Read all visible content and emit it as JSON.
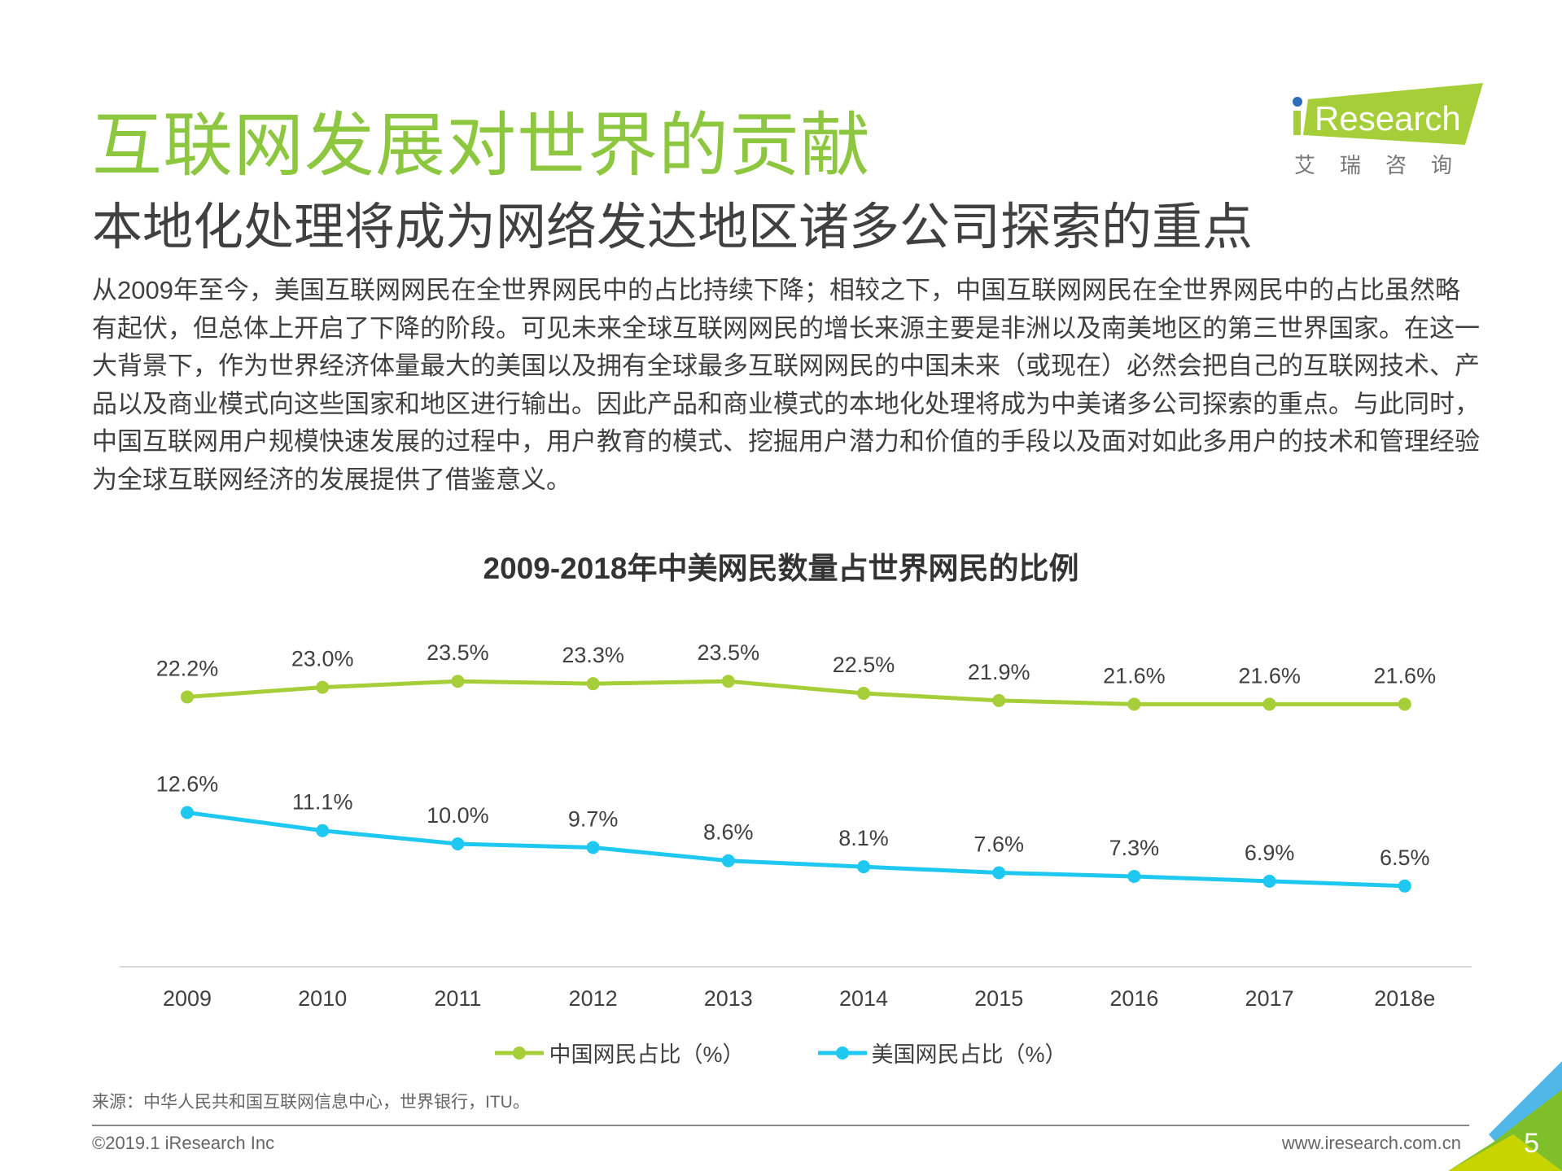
{
  "header": {
    "title": "互联网发展对世界的贡献",
    "subtitle": "本地化处理将成为网络发达地区诸多公司探索的重点",
    "logo": {
      "brand": "iResearch",
      "cn": "艾 瑞 咨 询",
      "color": "#a6ce39",
      "dot_color": "#2a6ebb"
    }
  },
  "body_text": "从2009年至今，美国互联网网民在全世界网民中的占比持续下降；相较之下，中国互联网网民在全世界网民中的占比虽然略有起伏，但总体上开启了下降的阶段。可见未来全球互联网网民的增长来源主要是非洲以及南美地区的第三世界国家。在这一大背景下，作为世界经济体量最大的美国以及拥有全球最多互联网网民的中国未来（或现在）必然会把自己的互联网技术、产品以及商业模式向这些国家和地区进行输出。因此产品和商业模式的本地化处理将成为中美诸多公司探索的重点。与此同时，中国互联网用户规模快速发展的过程中，用户教育的模式、挖掘用户潜力和价值的手段以及面对如此多用户的技术和管理经验为全球互联网经济的发展提供了借鉴意义。",
  "chart_data": {
    "type": "line",
    "title": "2009-2018年中美网民数量占世界网民的比例",
    "categories": [
      "2009",
      "2010",
      "2011",
      "2012",
      "2013",
      "2014",
      "2015",
      "2016",
      "2017",
      "2018e"
    ],
    "series": [
      {
        "name": "中国网民占比（%）",
        "color": "#a6ce39",
        "values": [
          22.2,
          23.0,
          23.5,
          23.3,
          23.5,
          22.5,
          21.9,
          21.6,
          21.6,
          21.6
        ],
        "labels": [
          "22.2%",
          "23.0%",
          "23.5%",
          "23.3%",
          "23.5%",
          "22.5%",
          "21.9%",
          "21.6%",
          "21.6%",
          "21.6%"
        ]
      },
      {
        "name": "美国网民占比（%）",
        "color": "#1ec8f0",
        "values": [
          12.6,
          11.1,
          10.0,
          9.7,
          8.6,
          8.1,
          7.6,
          7.3,
          6.9,
          6.5
        ],
        "labels": [
          "12.6%",
          "11.1%",
          "10.0%",
          "9.7%",
          "8.6%",
          "8.1%",
          "7.6%",
          "7.3%",
          "6.9%",
          "6.5%"
        ]
      }
    ],
    "ylim": [
      0,
      25
    ],
    "grid": false,
    "legend": "bottom"
  },
  "footer": {
    "source": "来源：中华人民共和国互联网信息中心，世界银行，ITU。",
    "copyright": "©2019.1 iResearch Inc",
    "url": "www.iresearch.com.cn",
    "page": "5"
  }
}
